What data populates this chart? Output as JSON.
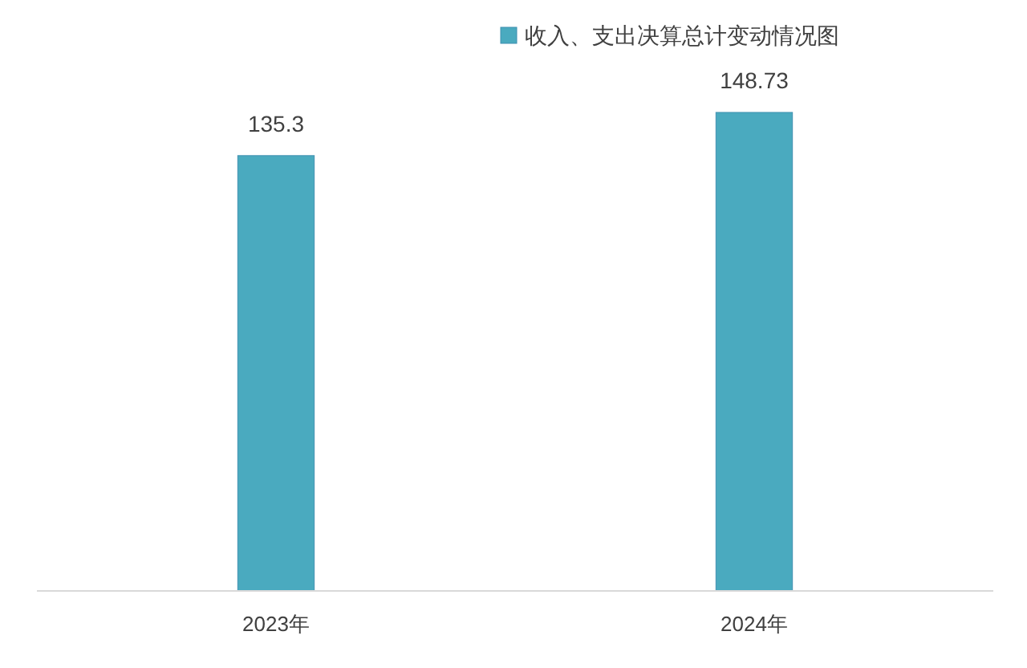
{
  "chart_data": {
    "type": "bar",
    "categories": [
      "2023年",
      "2024年"
    ],
    "series": [
      {
        "name": "收入、支出决算总计变动情况图",
        "color": "#4aaabf",
        "values": [
          135.3,
          148.73
        ]
      }
    ],
    "data_labels": true,
    "legend": "top"
  }
}
